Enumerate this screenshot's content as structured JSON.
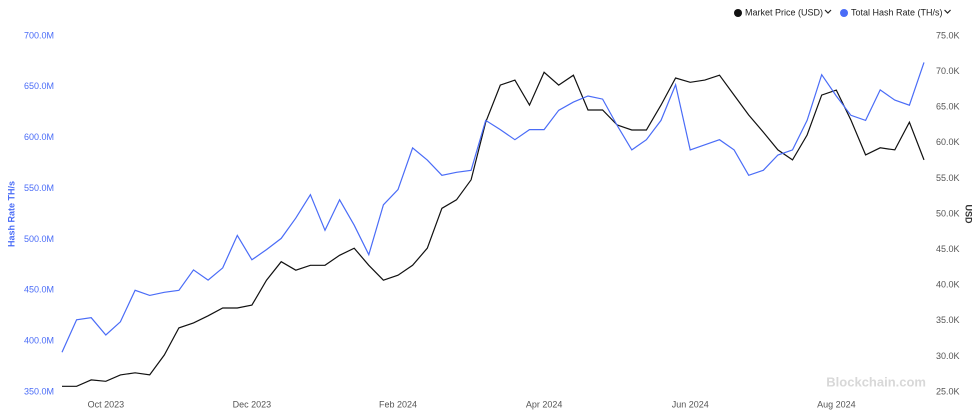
{
  "chart_data": {
    "type": "line",
    "y_label": "Hash Rate TH/s",
    "y2_label": "USD",
    "watermark": "Blockchain.com",
    "legend": "top-right",
    "categories": [
      null,
      null,
      null,
      "Oct 2023",
      null,
      null,
      null,
      null,
      null,
      null,
      null,
      null,
      null,
      "Dec 2023",
      null,
      null,
      null,
      null,
      null,
      null,
      null,
      null,
      null,
      "Feb 2024",
      null,
      null,
      null,
      null,
      null,
      null,
      null,
      null,
      null,
      "Apr 2024",
      null,
      null,
      null,
      null,
      null,
      null,
      null,
      null,
      null,
      "Jun 2024",
      null,
      null,
      null,
      null,
      null,
      null,
      null,
      null,
      null,
      "Aug 2024",
      null,
      null,
      null,
      null,
      null,
      null
    ],
    "series": [
      {
        "name": "Market Price (USD)",
        "color": "#111111",
        "axis": "y2",
        "values": [
          25.8,
          25.8,
          26.7,
          26.5,
          27.4,
          27.7,
          27.4,
          30.2,
          34.0,
          34.7,
          35.7,
          36.8,
          36.8,
          37.2,
          40.7,
          43.3,
          42.1,
          42.8,
          42.8,
          44.2,
          45.2,
          42.8,
          40.7,
          41.4,
          42.8,
          45.2,
          50.8,
          52.0,
          54.8,
          62.9,
          68.1,
          68.8,
          65.3,
          69.9,
          68.1,
          69.5,
          64.6,
          64.6,
          62.5,
          61.8,
          61.8,
          65.3,
          69.1,
          68.5,
          68.8,
          69.5,
          66.7,
          63.9,
          61.5,
          59.0,
          57.6,
          61.1,
          66.7,
          67.4,
          63.2,
          58.3,
          59.3,
          59.0,
          62.9,
          57.6
        ]
      },
      {
        "name": "Total Hash Rate (TH/s)",
        "color": "#4a6cf7",
        "values": [
          389,
          421,
          423,
          406,
          419,
          450,
          445,
          448,
          450,
          470,
          460,
          472,
          504,
          480,
          490,
          501,
          521,
          544,
          509,
          539,
          514,
          485,
          534,
          549,
          590,
          578,
          563,
          566,
          568,
          617,
          608,
          598,
          608,
          608,
          627,
          635,
          641,
          638,
          612,
          588,
          598,
          617,
          652,
          588,
          593,
          598,
          588,
          563,
          568,
          583,
          588,
          617,
          662,
          641,
          622,
          617,
          647,
          637,
          632,
          674
        ]
      }
    ],
    "ylim": [
      350,
      700
    ],
    "yticks": [
      {
        "value": 350,
        "label": "350.0M"
      },
      {
        "value": 400,
        "label": "400.0M"
      },
      {
        "value": 450,
        "label": "450.0M"
      },
      {
        "value": 500,
        "label": "500.0M"
      },
      {
        "value": 550,
        "label": "550.0M"
      },
      {
        "value": 600,
        "label": "600.0M"
      },
      {
        "value": 650,
        "label": "650.0M"
      },
      {
        "value": 700,
        "label": "700.0M"
      }
    ],
    "y2lim": [
      25,
      75
    ],
    "y2ticks": [
      {
        "value": 25,
        "label": "25.0K"
      },
      {
        "value": 30,
        "label": "30.0K"
      },
      {
        "value": 35,
        "label": "35.0K"
      },
      {
        "value": 40,
        "label": "40.0K"
      },
      {
        "value": 45,
        "label": "45.0K"
      },
      {
        "value": 50,
        "label": "50.0K"
      },
      {
        "value": 55,
        "label": "55.0K"
      },
      {
        "value": 60,
        "label": "60.0K"
      },
      {
        "value": 65,
        "label": "65.0K"
      },
      {
        "value": 70,
        "label": "70.0K"
      },
      {
        "value": 75,
        "label": "75.0K"
      }
    ]
  }
}
